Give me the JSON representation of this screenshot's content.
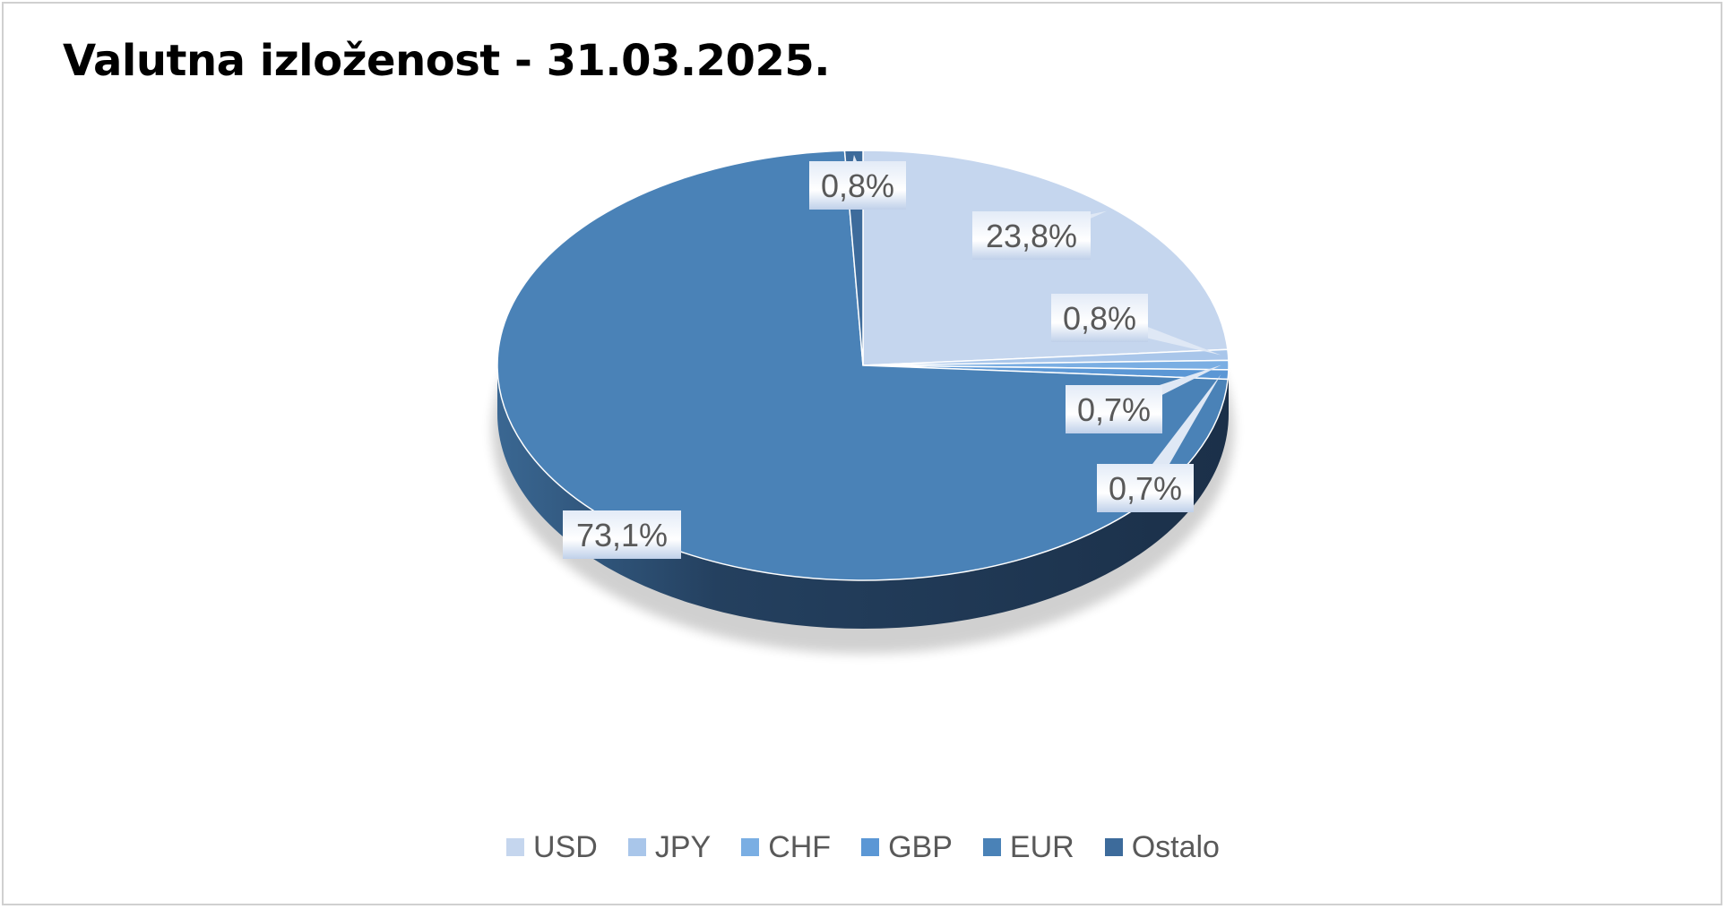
{
  "title": "Valutna izloženost - 31.03.2025.",
  "chart_data": {
    "type": "pie",
    "title": "Valutna izloženost - 31.03.2025.",
    "categories": [
      "USD",
      "JPY",
      "CHF",
      "GBP",
      "EUR",
      "Ostalo"
    ],
    "values": [
      23.8,
      0.8,
      0.7,
      0.7,
      73.1,
      0.8
    ],
    "data_labels": [
      "23,8%",
      "0,8%",
      "0,7%",
      "0,7%",
      "73,1%",
      "0,8%"
    ],
    "colors": [
      "#c5d6ee",
      "#a9c6ea",
      "#7aaee3",
      "#5b97d5",
      "#4a82b7",
      "#3d6b9b"
    ],
    "legend_position": "bottom",
    "style": "3d-pie"
  },
  "legend": {
    "items": [
      {
        "label": "USD",
        "color": "#c5d6ee"
      },
      {
        "label": "JPY",
        "color": "#a9c6ea"
      },
      {
        "label": "CHF",
        "color": "#7aaee3"
      },
      {
        "label": "GBP",
        "color": "#5b97d5"
      },
      {
        "label": "EUR",
        "color": "#4a82b7"
      },
      {
        "label": "Ostalo",
        "color": "#3d6b9b"
      }
    ]
  }
}
